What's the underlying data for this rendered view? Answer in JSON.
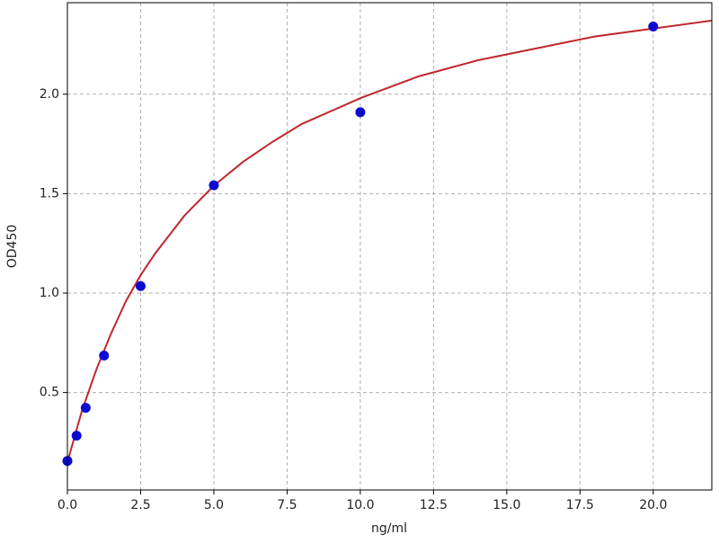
{
  "chart_data": {
    "type": "scatter",
    "xlabel": "ng/ml",
    "ylabel": "OD450",
    "xlim": [
      0,
      22
    ],
    "ylim": [
      0.01,
      2.46
    ],
    "xticks": [
      {
        "value": 0,
        "label": "0.0"
      },
      2.5,
      {
        "value": 5,
        "label": "5.0"
      },
      7.5,
      {
        "value": 10,
        "label": "10.0"
      },
      12.5,
      {
        "value": 15,
        "label": "15.0"
      },
      17.5,
      {
        "value": 20,
        "label": "20.0"
      }
    ],
    "yticks": [
      0.5,
      {
        "value": 1,
        "label": "1.0"
      },
      1.5,
      {
        "value": 2,
        "label": "2.0"
      }
    ],
    "grid": true,
    "series": [
      {
        "type": "line",
        "color": "#c0272d",
        "x": [
          0,
          0.5,
          1,
          1.5,
          2,
          2.5,
          3,
          4,
          5,
          6,
          7,
          8,
          10,
          12,
          14,
          16,
          18,
          20,
          22
        ],
        "values": [
          0.15,
          0.41,
          0.62,
          0.8,
          0.96,
          1.09,
          1.2,
          1.39,
          1.54,
          1.66,
          1.76,
          1.85,
          1.98,
          2.09,
          2.17,
          2.23,
          2.29,
          2.33,
          2.37
        ]
      },
      {
        "type": "scatter",
        "color": "#0a0ad0",
        "x": [
          0,
          0.3125,
          0.625,
          1.25,
          2.5,
          5,
          10,
          20
        ],
        "values": [
          0.156,
          0.283,
          0.423,
          0.686,
          1.035,
          1.542,
          1.909,
          2.34
        ]
      }
    ]
  }
}
